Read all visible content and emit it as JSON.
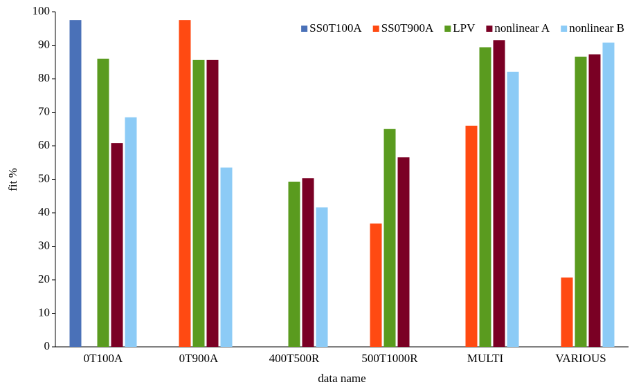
{
  "chart_data": {
    "type": "bar",
    "x_label": "data name",
    "y_label": "fit %",
    "categories": [
      "0T100A",
      "0T900A",
      "400T500R",
      "500T1000R",
      "MULTI",
      "VARIOUS"
    ],
    "series": [
      {
        "name": "SS0T100A",
        "color": "#4a71b8",
        "values": [
          97.5,
          null,
          null,
          null,
          null,
          null
        ]
      },
      {
        "name": "SS0T900A",
        "color": "#ff4a12",
        "values": [
          null,
          97.5,
          null,
          36.8,
          66,
          20.7
        ]
      },
      {
        "name": "LPV",
        "color": "#5a9b1f",
        "values": [
          86,
          85.6,
          49.3,
          65,
          89.4,
          86.6
        ]
      },
      {
        "name": "nonlinear A",
        "color": "#7a0024",
        "values": [
          60.8,
          85.6,
          50.3,
          56.6,
          91.5,
          87.3
        ]
      },
      {
        "name": "nonlinear B",
        "color": "#8ccbf6",
        "values": [
          68.5,
          53.5,
          41.6,
          null,
          82.1,
          90.8
        ]
      }
    ],
    "ylim": [
      0,
      100
    ],
    "yticks": [
      0,
      10,
      20,
      30,
      40,
      50,
      60,
      70,
      80,
      90,
      100
    ],
    "legend": "top-right"
  }
}
